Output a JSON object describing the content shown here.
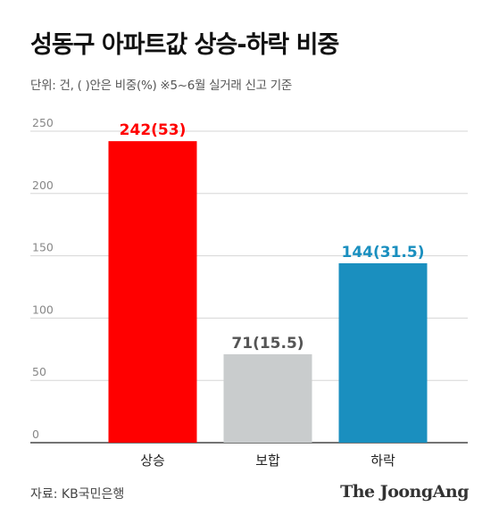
{
  "header": {
    "title": "성동구 아파트값 상승-하락 비중",
    "subtitle": "단위: 건, ( )안은 비중(%)  ※5~6월 실거래 신고 기준"
  },
  "footer": {
    "source": "자료: KB국민은행",
    "brand": "The JoongAng"
  },
  "chart_data": {
    "type": "bar",
    "title": "성동구 아파트값 상승-하락 비중",
    "categories": [
      "상승",
      "보합",
      "하락"
    ],
    "values": [
      242,
      71,
      144
    ],
    "data_labels": [
      "242(53)",
      "71(15.5)",
      "144(31.5)"
    ],
    "colors": [
      "#ff0000",
      "#c9cccd",
      "#1a8fbf"
    ],
    "label_colors": [
      "#ff0000",
      "#555555",
      "#1a8fbf"
    ],
    "ylim": [
      0,
      250
    ],
    "yticks": [
      0,
      50,
      100,
      150,
      200,
      250
    ],
    "grid": true,
    "legend": "none"
  }
}
